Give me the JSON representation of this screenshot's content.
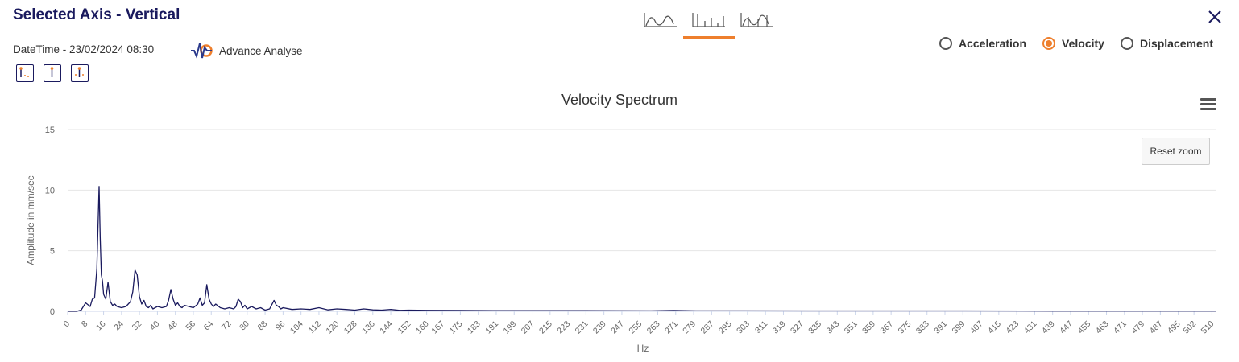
{
  "header": {
    "title": "Selected Axis - Vertical",
    "datetime": "DateTime - 23/02/2024 08:30",
    "advance_label": "Advance Analyse"
  },
  "view_tabs": [
    {
      "icon": "waveform-icon",
      "active": false
    },
    {
      "icon": "spectrum-icon",
      "active": true
    },
    {
      "icon": "waveform-spectrum-icon",
      "active": false
    }
  ],
  "tool_icons": [
    "cursor-harmonic-icon",
    "cursor-single-icon",
    "cursor-sideband-icon"
  ],
  "radios": [
    {
      "label": "Acceleration",
      "selected": false
    },
    {
      "label": "Velocity",
      "selected": true
    },
    {
      "label": "Displacement",
      "selected": false
    }
  ],
  "reset_zoom_label": "Reset zoom",
  "colors": {
    "accent": "#ee7f2d",
    "title": "#1a1a5e",
    "series": "#1a1a5e"
  },
  "chart_data": {
    "type": "line",
    "title": "Velocity Spectrum",
    "xlabel": "Hz",
    "ylabel": "Amplitude in mm/sec",
    "ylim": [
      0,
      15
    ],
    "yticks": [
      0,
      5,
      10,
      15
    ],
    "xlim": [
      0,
      512
    ],
    "xticks": [
      0,
      8,
      16,
      24,
      32,
      40,
      48,
      56,
      64,
      72,
      80,
      88,
      96,
      104,
      112,
      120,
      128,
      136,
      144,
      152,
      160,
      167,
      175,
      183,
      191,
      199,
      207,
      215,
      223,
      231,
      239,
      247,
      255,
      263,
      271,
      279,
      287,
      295,
      303,
      311,
      319,
      327,
      335,
      343,
      351,
      359,
      367,
      375,
      383,
      391,
      399,
      407,
      415,
      423,
      431,
      439,
      447,
      455,
      463,
      471,
      479,
      487,
      495,
      502,
      510
    ],
    "grid": true,
    "series": [
      {
        "x": [
          0,
          4,
          6,
          8,
          10,
          11,
          12,
          13,
          14,
          14.5,
          15,
          15.5,
          16,
          17,
          18,
          19,
          20,
          21,
          22,
          24,
          26,
          28,
          29,
          30,
          31,
          32,
          33,
          34,
          35,
          36,
          37,
          38,
          40,
          42,
          44,
          45,
          46,
          47,
          48,
          49,
          50,
          51,
          52,
          54,
          56,
          58,
          59,
          60,
          61,
          62,
          63,
          64,
          65,
          66,
          68,
          70,
          72,
          74,
          75,
          76,
          77,
          78,
          79,
          80,
          82,
          84,
          86,
          88,
          90,
          92,
          93,
          94,
          95,
          96,
          100,
          104,
          108,
          112,
          116,
          120,
          124,
          128,
          132,
          136,
          140,
          144,
          148,
          152,
          160,
          175,
          190,
          210,
          230,
          260,
          270,
          280,
          300,
          330,
          360,
          400,
          440,
          480,
          512
        ],
        "y": [
          0,
          0,
          0.1,
          0.7,
          0.4,
          1.0,
          1.1,
          3.5,
          10.3,
          6.0,
          3.0,
          2.5,
          1.4,
          1.0,
          2.4,
          0.8,
          0.5,
          0.6,
          0.4,
          0.3,
          0.4,
          0.8,
          1.6,
          3.4,
          3.0,
          1.2,
          0.6,
          0.9,
          0.4,
          0.3,
          0.5,
          0.2,
          0.4,
          0.3,
          0.4,
          0.9,
          1.8,
          1.0,
          0.5,
          0.7,
          0.4,
          0.3,
          0.5,
          0.4,
          0.3,
          0.6,
          1.1,
          0.5,
          0.7,
          2.2,
          1.0,
          0.6,
          0.4,
          0.6,
          0.3,
          0.2,
          0.3,
          0.2,
          0.4,
          1.0,
          0.8,
          0.3,
          0.5,
          0.2,
          0.4,
          0.2,
          0.3,
          0.1,
          0.2,
          0.9,
          0.5,
          0.4,
          0.2,
          0.3,
          0.15,
          0.2,
          0.15,
          0.3,
          0.12,
          0.2,
          0.15,
          0.1,
          0.2,
          0.12,
          0.1,
          0.15,
          0.08,
          0.1,
          0.08,
          0.07,
          0.06,
          0.05,
          0.05,
          0.04,
          0.07,
          0.04,
          0.04,
          0.03,
          0.03,
          0.03,
          0.02,
          0.02,
          0.02
        ]
      }
    ]
  }
}
